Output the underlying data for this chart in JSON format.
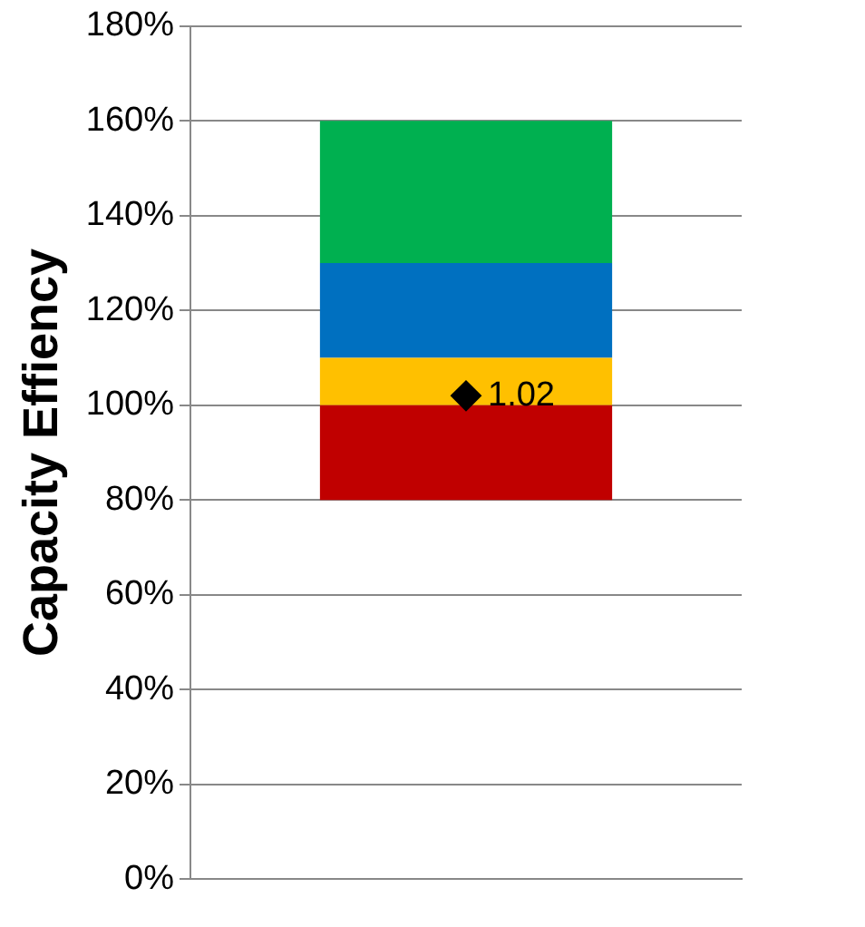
{
  "chart_data": {
    "type": "bar",
    "ylabel": "Capacity Effiency",
    "categories": [
      null
    ],
    "series": [
      {
        "color": "#c00000",
        "values": [
          0.2
        ],
        "base": [
          0.8
        ]
      },
      {
        "color": "#ffc000",
        "values": [
          0.1
        ],
        "base": [
          1.0
        ]
      },
      {
        "color": "#0070c0",
        "values": [
          0.2
        ],
        "base": [
          1.1
        ]
      },
      {
        "color": "#00b050",
        "values": [
          0.3
        ],
        "base": [
          1.3
        ]
      },
      {
        "type": "scatter",
        "color": "#000000",
        "values": [
          1.02
        ],
        "marker": "diamond",
        "value_labels": [
          "1.02"
        ]
      }
    ],
    "ylim": [
      0,
      1.8
    ],
    "yticks": [
      {
        "value": 0,
        "label": "0%"
      },
      {
        "value": 0.2,
        "label": "20%"
      },
      {
        "value": 0.4,
        "label": "40%"
      },
      {
        "value": 0.6,
        "label": "60%"
      },
      {
        "value": 0.8,
        "label": "80%"
      },
      {
        "value": 1.0,
        "label": "100%"
      },
      {
        "value": 1.2,
        "label": "120%"
      },
      {
        "value": 1.4,
        "label": "140%"
      },
      {
        "value": 1.6,
        "label": "160%"
      },
      {
        "value": 1.8,
        "label": "180%"
      }
    ],
    "grid": "y",
    "legend": false
  }
}
